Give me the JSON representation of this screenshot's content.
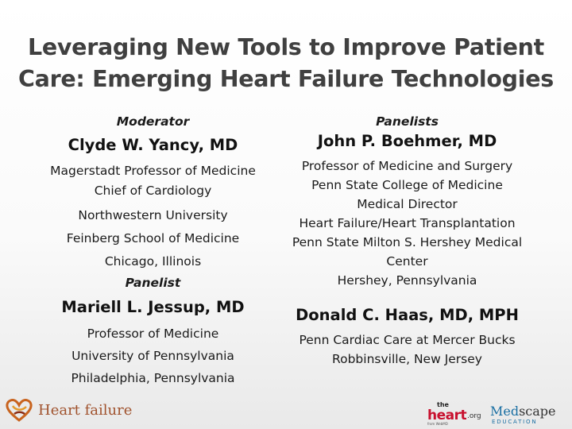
{
  "title": {
    "line1": "Leveraging New Tools to Improve Patient",
    "line2": "Care: Emerging Heart Failure Technologies"
  },
  "left": {
    "moderator_label": "Moderator",
    "moderator": {
      "name": "Clyde W. Yancy, MD",
      "lines": [
        "Magerstadt Professor of Medicine",
        "Chief of Cardiology",
        "Northwestern University",
        "Feinberg School of Medicine",
        "Chicago, Illinois"
      ]
    },
    "panelist_label": "Panelist",
    "panelist": {
      "name": "Mariell L. Jessup, MD",
      "lines": [
        "Professor of Medicine",
        "University of Pennsylvania",
        "Philadelphia, Pennsylvania"
      ]
    }
  },
  "right": {
    "panelists_label": "Panelists",
    "panelist1": {
      "name": "John P. Boehmer, MD",
      "lines": [
        "Professor of Medicine and Surgery",
        "Penn State College of Medicine",
        "Medical Director",
        "Heart Failure/Heart Transplantation",
        "Penn State Milton S. Hershey Medical",
        "Center",
        "Hershey, Pennsylvania"
      ]
    },
    "panelist2": {
      "name": "Donald C. Haas, MD, MPH",
      "lines": [
        "Penn Cardiac Care at Mercer Bucks",
        "Robbinsville, New Jersey"
      ]
    }
  },
  "footer": {
    "hf_logo_text": "Heart failure",
    "heart_logo": {
      "the": "the",
      "heart": "heart",
      "org": ".org",
      "from": "from WebMD"
    },
    "medscape_logo": {
      "med": "Med",
      "scape": "scape",
      "education": "EDUCATION"
    }
  },
  "colors": {
    "title": "#404040",
    "hf_logo": "#a0522d",
    "heart_red": "#c8102e",
    "medscape_blue": "#1a6fa3"
  }
}
